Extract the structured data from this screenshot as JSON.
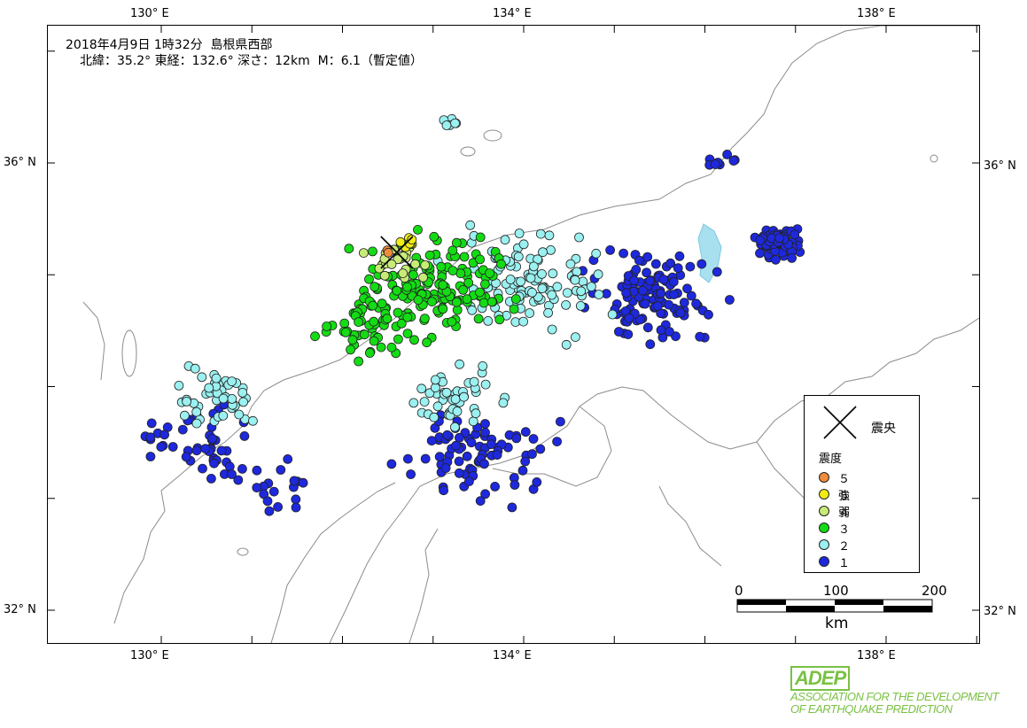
{
  "title": {
    "line1": "2018年4月9日 1時32分  島根県西部",
    "line2": "北緯：35.2° 東経：132.6° 深さ：12km  M：6.1（暫定値）"
  },
  "axes": {
    "lon_labels": [
      "130° E",
      "134° E",
      "138° E"
    ],
    "lat_labels": [
      "36° N",
      "32° N"
    ]
  },
  "legend": {
    "epicenter_label": "震央",
    "heading": "震度",
    "items": [
      {
        "label": "５強",
        "color": "#f08c3c"
      },
      {
        "label": "５弱",
        "color": "#f0ec14"
      },
      {
        "label": "４",
        "color": "#c8eb78"
      },
      {
        "label": "３",
        "color": "#14dc14"
      },
      {
        "label": "２",
        "color": "#9bf0f0"
      },
      {
        "label": "１",
        "color": "#1e28dc"
      }
    ]
  },
  "scale": {
    "ticks": [
      "0",
      "100",
      "200"
    ],
    "unit": "km"
  },
  "logo": {
    "mark": "ADEP",
    "line1": "ASSOCIATION  FOR THE DEVELOPMENT",
    "line2": "OF EARTHQUAKE PREDICTION"
  },
  "colors": {
    "coast": "#8c8c8c",
    "lake": "#a8e0f0",
    "frame": "#000000"
  },
  "epicenter": {
    "lat": 35.2,
    "lon": 132.6
  },
  "clusters": [
    {
      "level": "5強",
      "lat": 35.2,
      "lon": 132.5,
      "count": 2,
      "spread": 0.05
    },
    {
      "level": "5弱",
      "lat": 35.28,
      "lon": 132.75,
      "count": 8,
      "spread": 0.12
    },
    {
      "level": "4",
      "lat": 35.1,
      "lon": 132.6,
      "count": 22,
      "spread": 0.4
    },
    {
      "level": "3",
      "lat": 34.9,
      "lon": 133.0,
      "count": 150,
      "spread": 0.85
    },
    {
      "level": "3",
      "lat": 34.55,
      "lon": 132.3,
      "count": 50,
      "spread": 0.55
    },
    {
      "level": "2",
      "lat": 34.9,
      "lon": 134.0,
      "count": 110,
      "spread": 0.9
    },
    {
      "level": "2",
      "lat": 33.9,
      "lon": 130.6,
      "count": 45,
      "spread": 0.55
    },
    {
      "level": "2",
      "lat": 33.9,
      "lon": 133.3,
      "count": 45,
      "spread": 0.6
    },
    {
      "level": "2",
      "lat": 36.35,
      "lon": 133.2,
      "count": 6,
      "spread": 0.1
    },
    {
      "level": "1",
      "lat": 34.8,
      "lon": 135.4,
      "count": 120,
      "spread": 0.75
    },
    {
      "level": "1",
      "lat": 35.3,
      "lon": 136.8,
      "count": 75,
      "spread": 0.25
    },
    {
      "level": "1",
      "lat": 33.4,
      "lon": 133.5,
      "count": 80,
      "spread": 0.85
    },
    {
      "level": "1",
      "lat": 33.5,
      "lon": 130.4,
      "count": 45,
      "spread": 0.65
    },
    {
      "level": "1",
      "lat": 33.1,
      "lon": 131.3,
      "count": 20,
      "spread": 0.5
    },
    {
      "level": "1",
      "lat": 36.0,
      "lon": 136.2,
      "count": 8,
      "spread": 0.2
    }
  ]
}
